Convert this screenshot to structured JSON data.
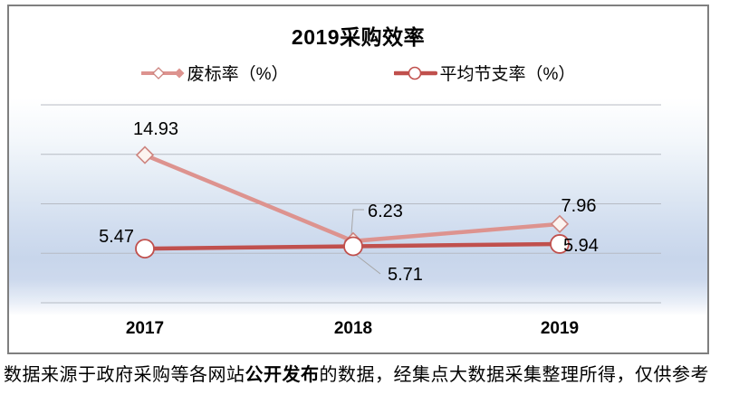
{
  "colors": {
    "frame_border": "#7f7f7f",
    "gridline": "#b6bbc4",
    "leader_line": "#a6a6a6",
    "label_text": "#000000",
    "series1_accent": "#dd938f",
    "series2_accent": "#c0504d"
  },
  "chart_data": {
    "type": "line",
    "title": "2019采购效率",
    "categories": [
      "2017",
      "2018",
      "2019"
    ],
    "series": [
      {
        "name": "废标率（%）",
        "values": [
          14.93,
          6.23,
          7.96
        ],
        "data_labels": [
          "14.93",
          "6.23",
          "7.96"
        ],
        "color": "#dd938f",
        "marker": "diamond",
        "marker_fill": "#fcf4f0",
        "marker_stroke": "#cd847f"
      },
      {
        "name": "平均节支率（%）",
        "values": [
          5.47,
          5.71,
          5.94
        ],
        "data_labels": [
          "5.47",
          "5.71",
          "5.94"
        ],
        "color": "#c0504d",
        "marker": "circle",
        "marker_fill": "#ffffff",
        "marker_stroke": "#c0504d"
      }
    ],
    "xlabel": "",
    "ylabel": "",
    "ylim": [
      0,
      20
    ],
    "gridline_interval": 5,
    "grid": true,
    "legend_position": "top-center",
    "data_labels_shown": true,
    "plot_bg_gradient_stops": [
      [
        "0%",
        "#ffffff"
      ],
      [
        "20%",
        "#f3f7fb"
      ],
      [
        "42%",
        "#e0e9f4"
      ],
      [
        "60%",
        "#d1ddef"
      ],
      [
        "74%",
        "#c8d6eb"
      ],
      [
        "84%",
        "#cdd9ed"
      ],
      [
        "94%",
        "#e8eef7"
      ],
      [
        "100%",
        "#fdfdfe"
      ]
    ]
  },
  "footnote": {
    "prefix": "数据来源于政府采购等各网站",
    "bold": "公开发布",
    "suffix": "的数据，经集点大数据采集整理所得，仅供参考"
  }
}
